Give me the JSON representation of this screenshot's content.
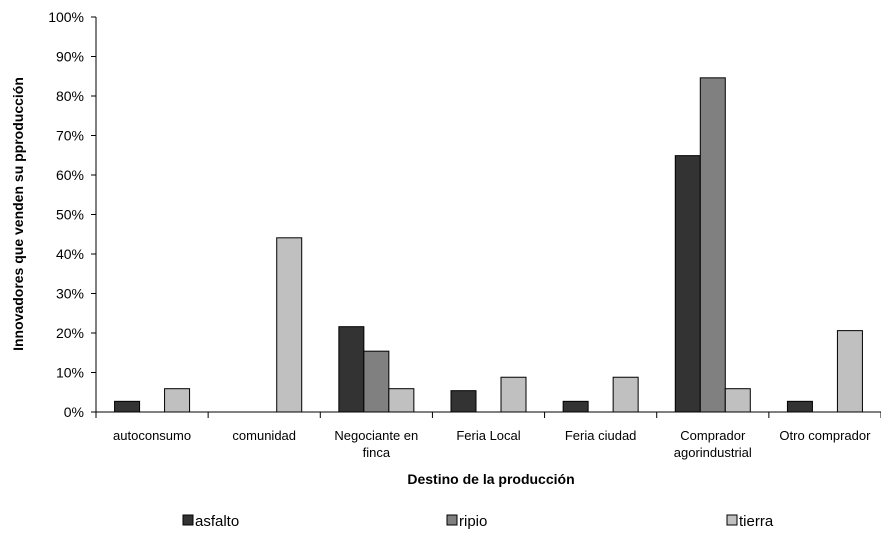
{
  "chart_data": {
    "type": "bar",
    "xlabel": "Destino de la producción",
    "ylabel": "Innovadores que venden su pproducción",
    "ylim": [
      0,
      100
    ],
    "y_ticks": [
      "0%",
      "10%",
      "20%",
      "30%",
      "40%",
      "50%",
      "60%",
      "70%",
      "80%",
      "90%",
      "100%"
    ],
    "grid": false,
    "legend_position": "bottom",
    "categories": [
      [
        "autoconsumo"
      ],
      [
        "comunidad"
      ],
      [
        "Negociante en",
        "finca"
      ],
      [
        "Feria Local"
      ],
      [
        "Feria ciudad"
      ],
      [
        "Comprador",
        "agorindustrial"
      ],
      [
        "Otro comprador"
      ]
    ],
    "series": [
      {
        "name": "asfalto",
        "color": "#333333",
        "values": [
          2.7,
          0,
          21.6,
          5.4,
          2.7,
          64.9,
          2.7
        ]
      },
      {
        "name": "ripio",
        "color": "#808080",
        "values": [
          0,
          0,
          15.4,
          0,
          0,
          84.6,
          0
        ]
      },
      {
        "name": "tierra",
        "color": "#c0c0c0",
        "values": [
          5.9,
          44.1,
          5.9,
          8.8,
          8.8,
          5.9,
          20.6
        ]
      }
    ]
  }
}
